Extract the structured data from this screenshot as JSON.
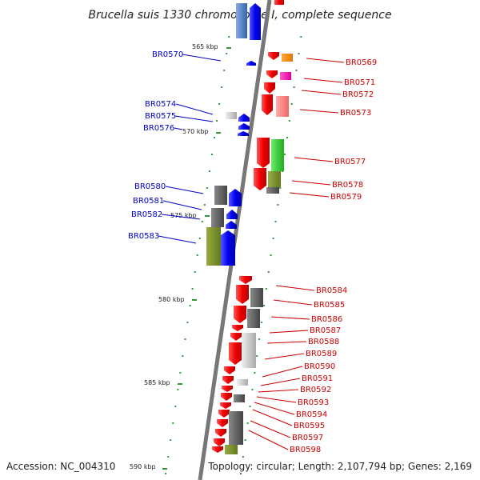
{
  "title": "Brucella suis 1330 chromosome I, complete sequence",
  "footer": {
    "accession": "Accession: NC_004310",
    "topology": "Topology: circular; Length: 2,107,794 bp; Genes: 2,169"
  },
  "colors": {
    "forward_label": "#cc0000",
    "reverse_label": "#0000cc",
    "backbone": "#777777",
    "tick": "#339933"
  },
  "scale_labels": [
    "565 kbp",
    "570 kbp",
    "575 kbp",
    "580 kbp",
    "585 kbp",
    "590 kbp"
  ],
  "genes_left": [
    "BR0570",
    "BR0574",
    "BR0575",
    "BR0576",
    "BR0580",
    "BR0581",
    "BR0582",
    "BR0583"
  ],
  "genes_right": [
    "BR0569",
    "BR0571",
    "BR0572",
    "BR0573",
    "BR0577",
    "BR0578",
    "BR0579",
    "BR0584",
    "BR0585",
    "BR0586",
    "BR0587",
    "BR0588",
    "BR0589",
    "BR0590",
    "BR0591",
    "BR0592",
    "BR0593",
    "BR0594",
    "BR0595",
    "BR0597",
    "BR0598"
  ]
}
